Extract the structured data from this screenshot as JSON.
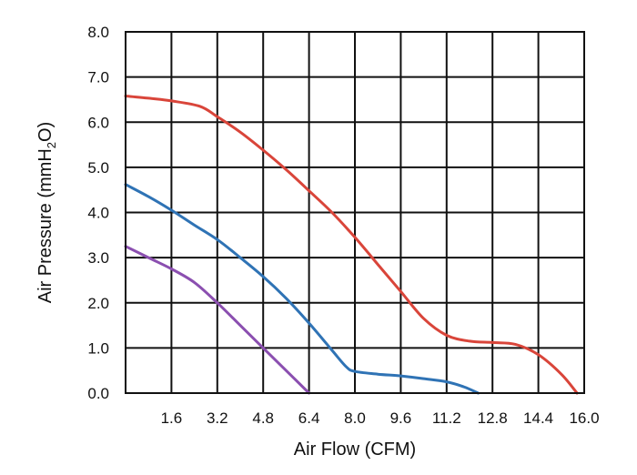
{
  "chart_data": {
    "type": "line",
    "xlabel": "Air Flow (CFM)",
    "ylabel": {
      "prefix": "Air Pressure (mmH",
      "sub": "2",
      "suffix": "O)"
    },
    "xlim": [
      0,
      16
    ],
    "ylim": [
      0,
      8
    ],
    "x_ticks": [
      1.6,
      3.2,
      4.8,
      6.4,
      8.0,
      9.6,
      11.2,
      12.8,
      14.4,
      16.0
    ],
    "x_tick_labels": [
      "1.6",
      "3.2",
      "4.8",
      "6.4",
      "8.0",
      "9.6",
      "11.2",
      "12.8",
      "14.4",
      "16.0"
    ],
    "y_ticks": [
      0,
      1,
      2,
      3,
      4,
      5,
      6,
      7,
      8
    ],
    "y_tick_labels": [
      "0.0",
      "1.0",
      "2.0",
      "3.0",
      "4.0",
      "5.0",
      "6.0",
      "7.0",
      "8.0"
    ],
    "grid": true,
    "legend": "none",
    "series": [
      {
        "color": "#d9453a",
        "points": [
          [
            0,
            6.58
          ],
          [
            0.8,
            6.53
          ],
          [
            1.6,
            6.47
          ],
          [
            2.6,
            6.35
          ],
          [
            3.2,
            6.12
          ],
          [
            4.0,
            5.78
          ],
          [
            4.8,
            5.38
          ],
          [
            5.6,
            4.95
          ],
          [
            6.4,
            4.48
          ],
          [
            7.2,
            4.0
          ],
          [
            8.0,
            3.45
          ],
          [
            8.8,
            2.85
          ],
          [
            9.6,
            2.25
          ],
          [
            10.4,
            1.65
          ],
          [
            11.2,
            1.28
          ],
          [
            12.0,
            1.15
          ],
          [
            12.8,
            1.12
          ],
          [
            13.6,
            1.08
          ],
          [
            14.4,
            0.85
          ],
          [
            15.2,
            0.42
          ],
          [
            15.75,
            0.0
          ]
        ]
      },
      {
        "color": "#2f73b5",
        "points": [
          [
            0,
            4.62
          ],
          [
            0.8,
            4.35
          ],
          [
            1.6,
            4.05
          ],
          [
            2.4,
            3.72
          ],
          [
            3.2,
            3.4
          ],
          [
            4.0,
            3.0
          ],
          [
            4.8,
            2.58
          ],
          [
            5.6,
            2.1
          ],
          [
            6.4,
            1.55
          ],
          [
            7.2,
            0.95
          ],
          [
            7.7,
            0.58
          ],
          [
            8.0,
            0.48
          ],
          [
            8.8,
            0.42
          ],
          [
            9.6,
            0.38
          ],
          [
            10.4,
            0.32
          ],
          [
            11.2,
            0.25
          ],
          [
            11.8,
            0.14
          ],
          [
            12.3,
            0.0
          ]
        ]
      },
      {
        "color": "#8b4fb0",
        "points": [
          [
            0,
            3.25
          ],
          [
            0.8,
            3.0
          ],
          [
            1.6,
            2.75
          ],
          [
            2.4,
            2.45
          ],
          [
            3.2,
            2.0
          ],
          [
            4.0,
            1.5
          ],
          [
            4.8,
            1.0
          ],
          [
            5.6,
            0.5
          ],
          [
            6.4,
            0.0
          ]
        ]
      }
    ]
  }
}
